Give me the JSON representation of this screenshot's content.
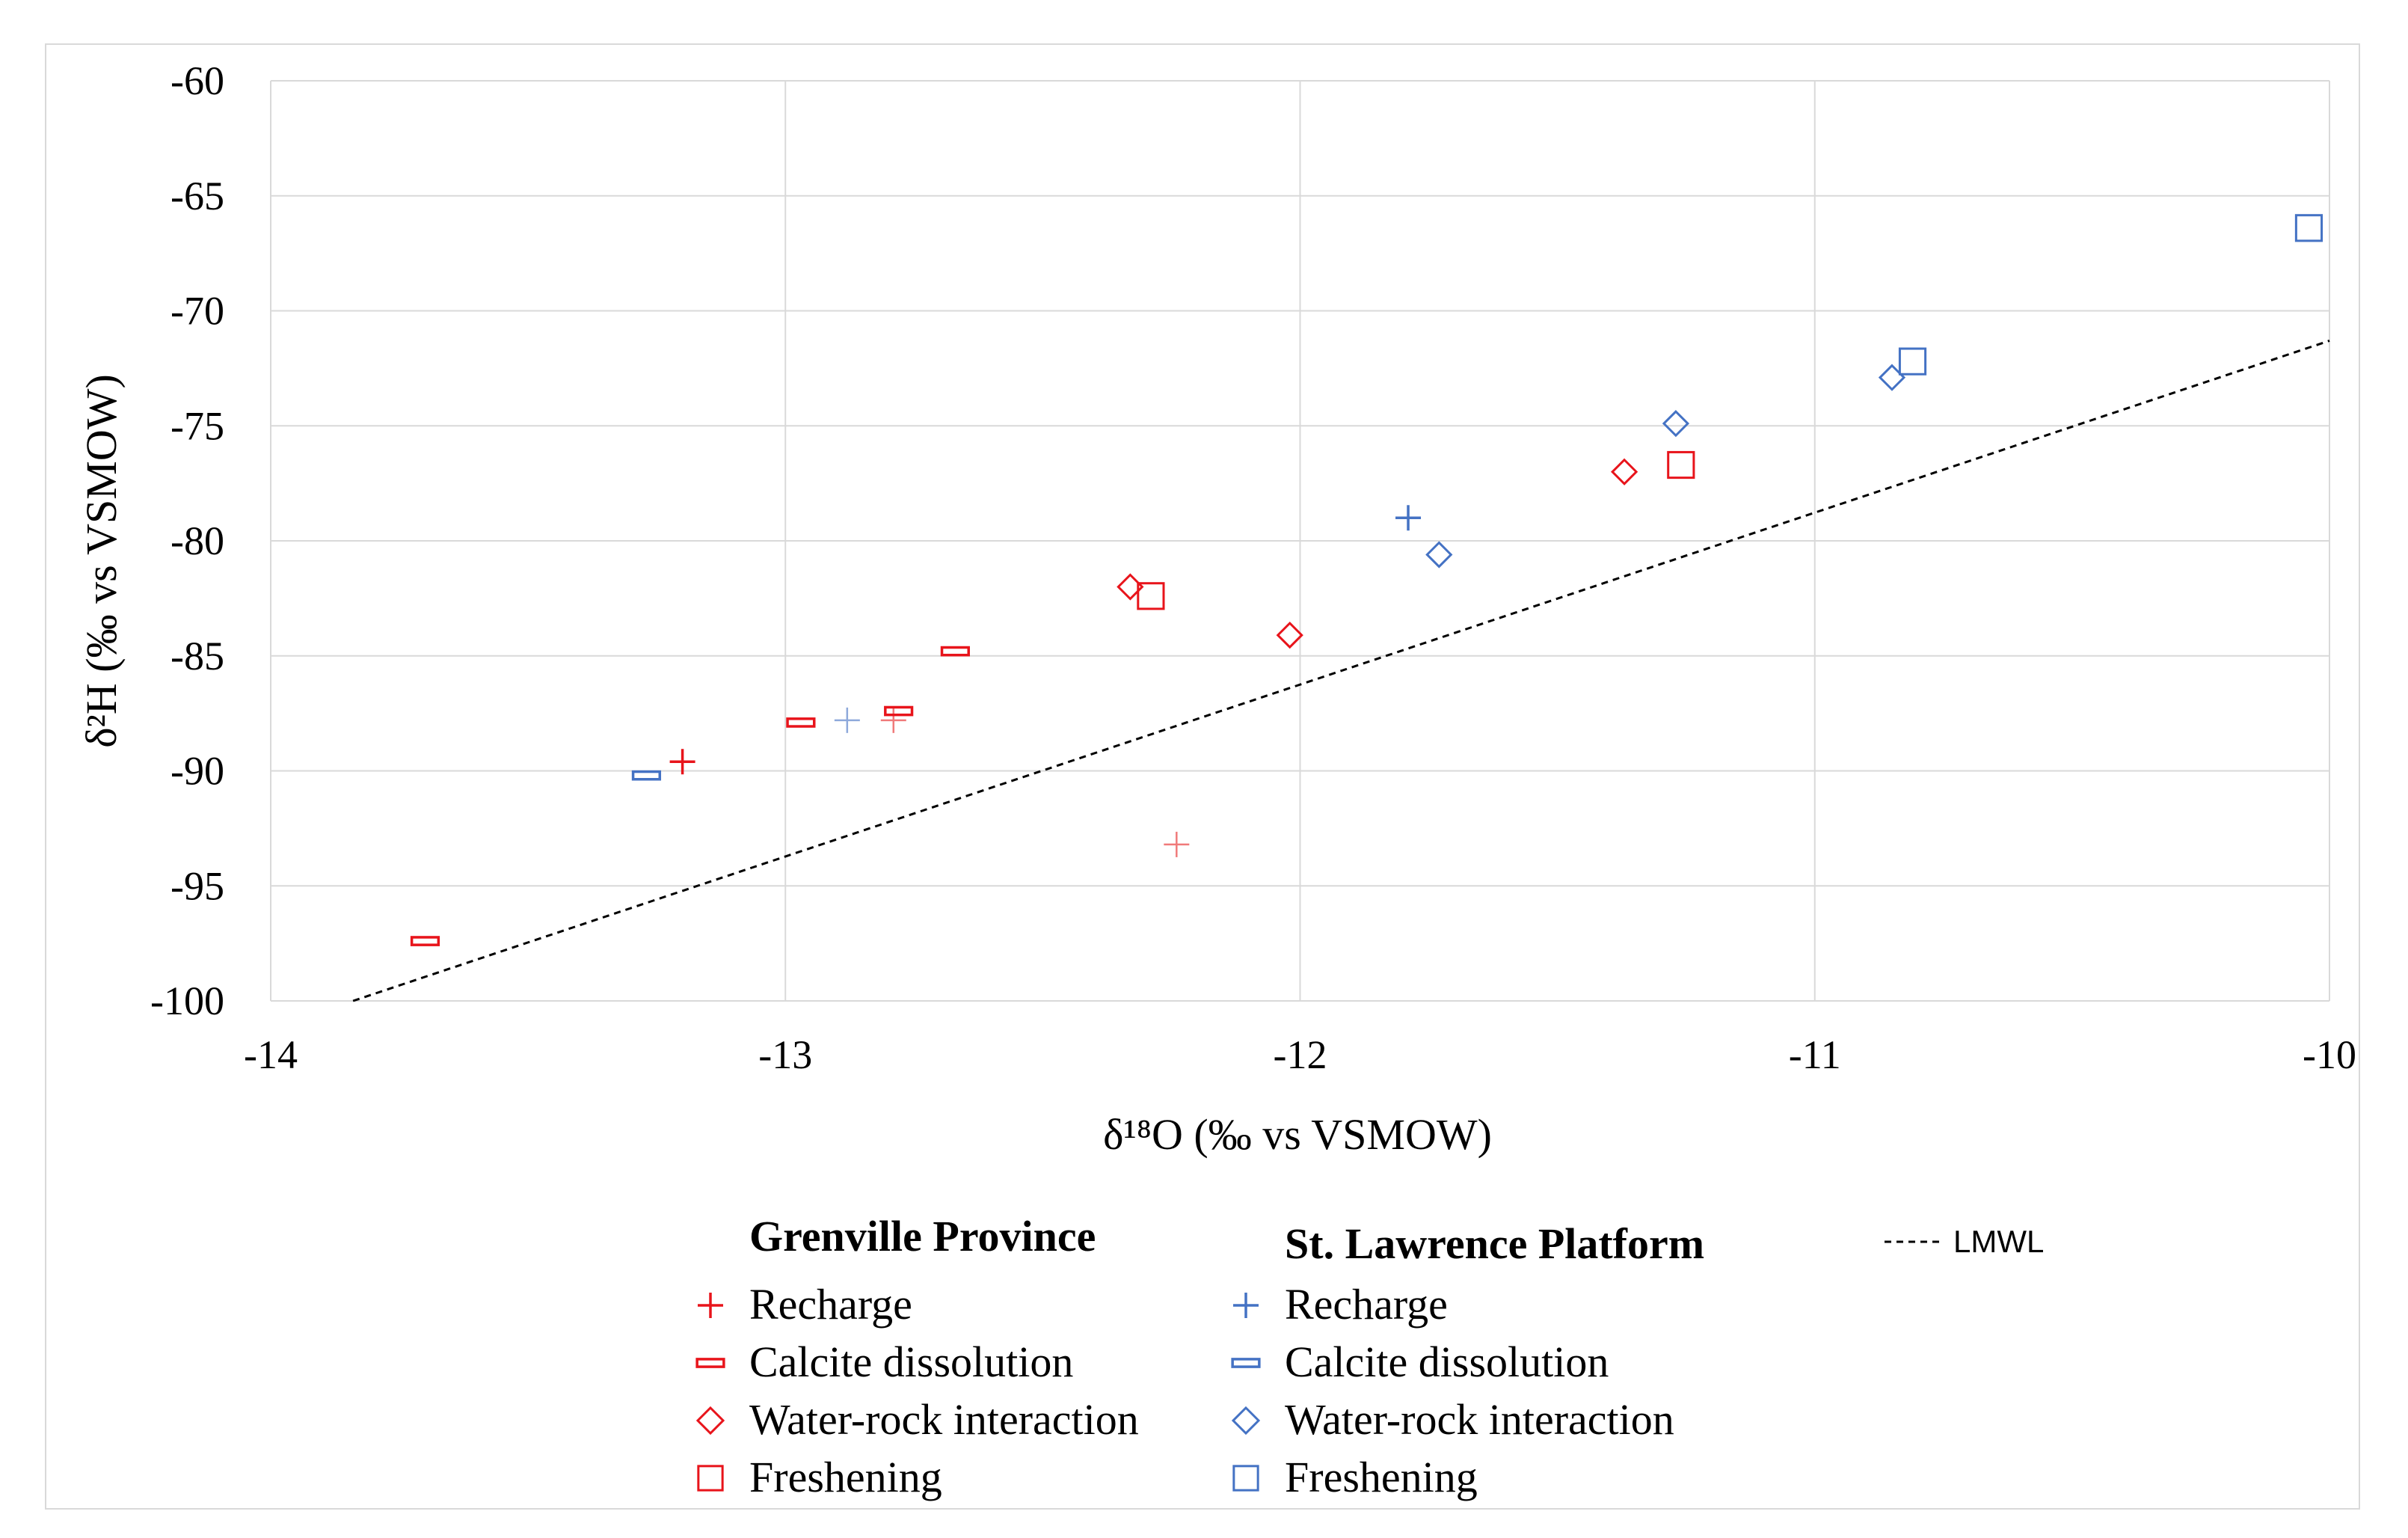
{
  "chart_data": {
    "type": "scatter",
    "xlabel": "δ¹⁸O (‰ vs VSMOW)",
    "ylabel": "δ²H (‰ vs VSMOW)",
    "xlim": [
      -14,
      -10
    ],
    "ylim": [
      -100,
      -60
    ],
    "x_ticks": [
      "-14",
      "-13",
      "-12",
      "-11",
      "-10"
    ],
    "y_ticks": [
      "-60",
      "-65",
      "-70",
      "-75",
      "-80",
      "-85",
      "-90",
      "-95",
      "-100"
    ],
    "grid": true,
    "legend_groups": [
      {
        "title": "Grenville Province",
        "color": "#e8141b",
        "entries": [
          {
            "label": "Recharge",
            "marker": "plus"
          },
          {
            "label": "Calcite dissolution",
            "marker": "dash"
          },
          {
            "label": "Water-rock interaction",
            "marker": "diamond"
          },
          {
            "label": "Freshening",
            "marker": "square"
          }
        ]
      },
      {
        "title": "St. Lawrence Platform",
        "color": "#4472c4",
        "entries": [
          {
            "label": "Recharge",
            "marker": "plus"
          },
          {
            "label": "Calcite dissolution",
            "marker": "dash"
          },
          {
            "label": "Water-rock interaction",
            "marker": "diamond"
          },
          {
            "label": "Freshening",
            "marker": "square"
          }
        ]
      }
    ],
    "series": [
      {
        "name": "Grenville Province - Recharge",
        "color": "#e8141b",
        "marker": "plus",
        "thin": false,
        "points": [
          [
            -13.2,
            -89.6
          ]
        ]
      },
      {
        "name": "Grenville Province - Recharge (light)",
        "color": "#f07a7a",
        "marker": "plus",
        "thin": true,
        "points": [
          [
            -12.24,
            -93.2
          ],
          [
            -12.79,
            -87.8
          ]
        ]
      },
      {
        "name": "Grenville Province - Calcite dissolution",
        "color": "#e8141b",
        "marker": "dash",
        "points": [
          [
            -13.7,
            -97.4
          ],
          [
            -12.97,
            -87.9
          ],
          [
            -12.78,
            -87.4
          ],
          [
            -12.67,
            -84.8
          ]
        ]
      },
      {
        "name": "Grenville Province - Water-rock interaction",
        "color": "#e8141b",
        "marker": "diamond",
        "points": [
          [
            -12.33,
            -82.0
          ],
          [
            -12.02,
            -84.1
          ],
          [
            -11.37,
            -77.0
          ]
        ]
      },
      {
        "name": "Grenville Province - Freshening",
        "color": "#e8141b",
        "marker": "square",
        "points": [
          [
            -12.29,
            -82.4
          ],
          [
            -11.26,
            -76.7
          ]
        ]
      },
      {
        "name": "St. Lawrence Platform - Recharge",
        "color": "#4472c4",
        "marker": "plus",
        "thin": false,
        "points": [
          [
            -11.79,
            -79.0
          ]
        ]
      },
      {
        "name": "St. Lawrence Platform - Recharge (light)",
        "color": "#8ea9db",
        "marker": "plus",
        "thin": true,
        "points": [
          [
            -12.88,
            -87.8
          ]
        ]
      },
      {
        "name": "St. Lawrence Platform - Calcite dissolution",
        "color": "#4472c4",
        "marker": "dash",
        "points": [
          [
            -13.27,
            -90.2
          ]
        ]
      },
      {
        "name": "St. Lawrence Platform - Water-rock interaction",
        "color": "#4472c4",
        "marker": "diamond",
        "points": [
          [
            -11.73,
            -80.6
          ],
          [
            -11.27,
            -74.9
          ],
          [
            -10.85,
            -72.9
          ]
        ]
      },
      {
        "name": "St. Lawrence Platform - Freshening",
        "color": "#4472c4",
        "marker": "square",
        "points": [
          [
            -10.81,
            -72.2
          ],
          [
            -10.04,
            -66.4
          ]
        ]
      }
    ],
    "lmwl": {
      "label": "LMWL",
      "points": [
        [
          -13.84,
          -100.0
        ],
        [
          -10.0,
          -71.3
        ]
      ]
    }
  }
}
